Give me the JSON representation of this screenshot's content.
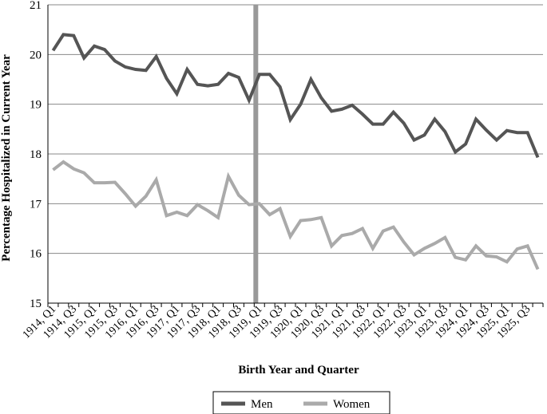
{
  "chart_data": {
    "type": "line",
    "xlabel": "Birth Year and Quarter",
    "ylabel": "Percentage Hospitalized in Current Year",
    "ylim": [
      15,
      21
    ],
    "yticks": [
      15,
      16,
      17,
      18,
      19,
      20,
      21
    ],
    "grid": "horizontal",
    "legend_position": "bottom",
    "x": [
      "1914, Q1",
      "1914, Q2",
      "1914, Q3",
      "1914, Q4",
      "1915, Q1",
      "1915, Q2",
      "1915, Q3",
      "1915, Q4",
      "1916, Q1",
      "1916, Q2",
      "1916, Q3",
      "1916, Q4",
      "1917, Q1",
      "1917, Q2",
      "1917, Q3",
      "1917, Q4",
      "1918, Q1",
      "1918, Q2",
      "1918, Q3",
      "1918, Q4",
      "1919, Q1",
      "1919, Q2",
      "1919, Q3",
      "1919, Q4",
      "1920, Q1",
      "1920, Q2",
      "1920, Q3",
      "1920, Q4",
      "1921, Q1",
      "1921, Q2",
      "1921, Q3",
      "1921, Q4",
      "1922, Q1",
      "1922, Q2",
      "1922, Q3",
      "1922, Q4",
      "1923, Q1",
      "1923, Q2",
      "1923, Q3",
      "1923, Q4",
      "1924, Q1",
      "1924, Q2",
      "1924, Q3",
      "1924, Q4",
      "1925, Q1",
      "1925, Q2",
      "1925, Q3",
      "1925, Q4"
    ],
    "xtick_labels": [
      "1914, Q1",
      "1914, Q3",
      "1915, Q1",
      "1915, Q3",
      "1916, Q1",
      "1916, Q3",
      "1917, Q1",
      "1917, Q3",
      "1918, Q1",
      "1918, Q3",
      "1919, Q1",
      "1919, Q3",
      "1920, Q1",
      "1920, Q3",
      "1921, Q1",
      "1921, Q3",
      "1922, Q1",
      "1922, Q3",
      "1923, Q1",
      "1923, Q3",
      "1924, Q1",
      "1924, Q3",
      "1925, Q1",
      "1925, Q3"
    ],
    "vertical_marker": "1918, Q4",
    "series": [
      {
        "name": "Men",
        "color": "#555555",
        "values": [
          20.08,
          20.4,
          20.38,
          19.93,
          20.17,
          20.1,
          19.87,
          19.75,
          19.7,
          19.68,
          19.96,
          19.52,
          19.21,
          19.7,
          19.4,
          19.37,
          19.4,
          19.62,
          19.54,
          19.08,
          19.6,
          19.6,
          19.35,
          18.69,
          19.0,
          19.5,
          19.13,
          18.86,
          18.9,
          18.98,
          18.8,
          18.6,
          18.6,
          18.84,
          18.62,
          18.28,
          18.38,
          18.7,
          18.45,
          18.04,
          18.2,
          18.7,
          18.48,
          18.28,
          18.47,
          18.43,
          18.43,
          17.93
        ]
      },
      {
        "name": "Women",
        "color": "#aaaaaa",
        "values": [
          17.68,
          17.84,
          17.7,
          17.62,
          17.42,
          17.42,
          17.43,
          17.2,
          16.95,
          17.15,
          17.48,
          16.76,
          16.83,
          16.76,
          16.98,
          16.86,
          16.72,
          17.55,
          17.17,
          16.98,
          17.0,
          16.78,
          16.9,
          16.34,
          16.66,
          16.68,
          16.72,
          16.15,
          16.36,
          16.4,
          16.5,
          16.1,
          16.45,
          16.53,
          16.23,
          15.97,
          16.1,
          16.2,
          16.32,
          15.92,
          15.87,
          16.15,
          15.95,
          15.93,
          15.83,
          16.09,
          16.15,
          15.68
        ]
      }
    ]
  },
  "colors": {
    "marker": "#999999",
    "grid": "#888888",
    "axis": "#000000"
  }
}
